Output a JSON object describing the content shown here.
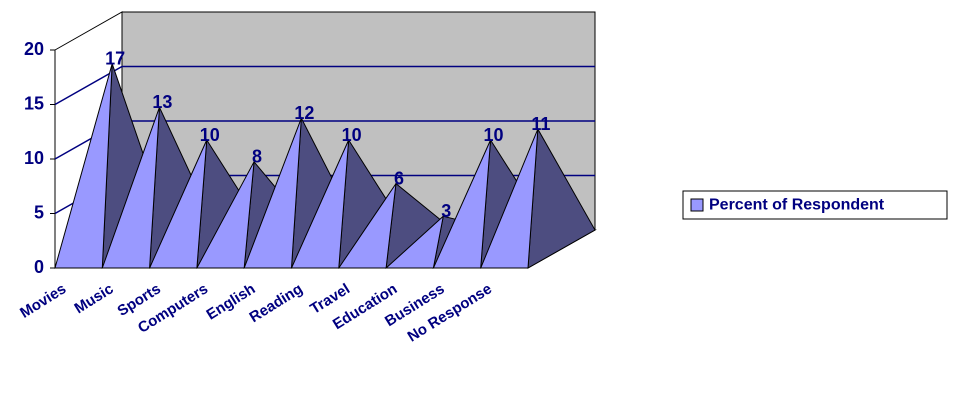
{
  "chart_data": {
    "type": "pyramid3d",
    "categories": [
      "Movies",
      "Music",
      "Sports",
      "Computers",
      "English",
      "Reading",
      "Travel",
      "Education",
      "Business",
      "No Response"
    ],
    "series": [
      {
        "name": "Percent of Respondent",
        "color": "#9999ff",
        "values": [
          17,
          13,
          10,
          8,
          12,
          10,
          6,
          3,
          10,
          11
        ]
      }
    ],
    "ylim": [
      0,
      20
    ],
    "yticks": [
      0,
      5,
      10,
      15,
      20
    ],
    "grid": true,
    "legend": "right"
  }
}
